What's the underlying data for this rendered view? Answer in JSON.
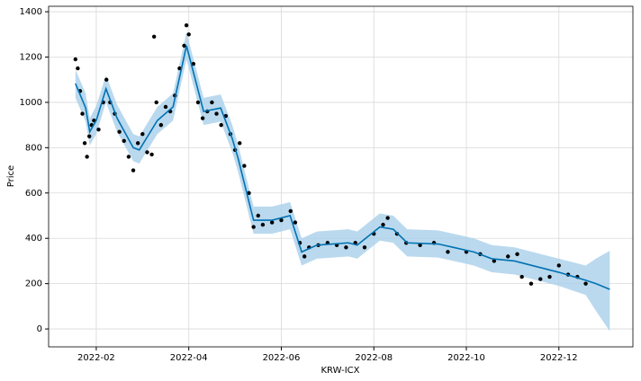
{
  "chart_data": {
    "type": "forecast",
    "xlabel": "KRW-ICX",
    "ylabel": "Price",
    "xlim": [
      -0.03,
      12.6
    ],
    "ylim": [
      -79,
      1424
    ],
    "xticks": [
      {
        "value": 1,
        "label": "2022-02"
      },
      {
        "value": 3,
        "label": "2022-04"
      },
      {
        "value": 5,
        "label": "2022-06"
      },
      {
        "value": 7,
        "label": "2022-08"
      },
      {
        "value": 9,
        "label": "2022-10"
      },
      {
        "value": 11,
        "label": "2022-12"
      }
    ],
    "yticks": [
      0,
      200,
      400,
      600,
      800,
      1000,
      1200,
      1400
    ],
    "grid": true,
    "line_color": "#0072b2",
    "band_color": "#a9cfea",
    "point_color": "#000000",
    "forecast": {
      "x": [
        0.55,
        0.77,
        0.86,
        1.0,
        1.21,
        1.45,
        1.8,
        1.93,
        2.32,
        2.66,
        2.95,
        3.32,
        3.69,
        3.94,
        4.07,
        4.4,
        4.8,
        5.19,
        5.44,
        5.77,
        6.45,
        6.64,
        7.13,
        7.42,
        7.72,
        8.39,
        9.16,
        9.55,
        10.04,
        11.0,
        11.58,
        11.8,
        12.1
      ],
      "yhat": [
        1083,
        976,
        870,
        920,
        1060,
        930,
        800,
        790,
        920,
        980,
        1250,
        960,
        975,
        840,
        750,
        480,
        480,
        500,
        340,
        370,
        380,
        370,
        450,
        440,
        380,
        375,
        340,
        310,
        300,
        250,
        215,
        200,
        175
      ],
      "yhat_lower": [
        1020,
        915,
        810,
        860,
        1000,
        870,
        740,
        730,
        860,
        920,
        1190,
        900,
        915,
        780,
        690,
        420,
        420,
        440,
        280,
        310,
        320,
        310,
        390,
        380,
        320,
        315,
        280,
        250,
        240,
        190,
        150,
        80,
        -10
      ],
      "yhat_upper": [
        1145,
        1040,
        930,
        985,
        1120,
        990,
        860,
        850,
        980,
        1040,
        1310,
        1020,
        1035,
        900,
        810,
        540,
        540,
        560,
        400,
        430,
        440,
        430,
        510,
        500,
        440,
        435,
        400,
        370,
        360,
        310,
        280,
        310,
        345
      ]
    },
    "observed": {
      "x": [
        0.55,
        0.6,
        0.65,
        0.7,
        0.75,
        0.8,
        0.85,
        0.9,
        0.95,
        1.05,
        1.15,
        1.22,
        1.3,
        1.4,
        1.5,
        1.6,
        1.7,
        1.8,
        1.9,
        2.0,
        2.1,
        2.2,
        2.25,
        2.3,
        2.4,
        2.5,
        2.6,
        2.7,
        2.8,
        2.9,
        2.95,
        3.0,
        3.1,
        3.2,
        3.3,
        3.4,
        3.5,
        3.6,
        3.7,
        3.8,
        3.9,
        4.0,
        4.1,
        4.2,
        4.3,
        4.4,
        4.5,
        4.6,
        4.8,
        5.0,
        5.2,
        5.3,
        5.4,
        5.5,
        5.6,
        5.8,
        6.0,
        6.2,
        6.4,
        6.6,
        6.8,
        7.0,
        7.2,
        7.3,
        7.5,
        7.7,
        8.0,
        8.3,
        8.6,
        9.0,
        9.3,
        9.6,
        9.9,
        10.1,
        10.2,
        10.4,
        10.6,
        10.8,
        11.0,
        11.2,
        11.4,
        11.58
      ],
      "y": [
        1190,
        1150,
        1050,
        950,
        820,
        760,
        850,
        900,
        920,
        880,
        1000,
        1100,
        1000,
        950,
        870,
        830,
        760,
        700,
        820,
        860,
        780,
        770,
        1290,
        1000,
        900,
        980,
        960,
        1030,
        1150,
        1250,
        1340,
        1300,
        1170,
        1000,
        930,
        960,
        1000,
        950,
        900,
        940,
        860,
        790,
        820,
        720,
        600,
        450,
        500,
        460,
        470,
        480,
        520,
        470,
        380,
        320,
        360,
        370,
        380,
        370,
        360,
        380,
        360,
        420,
        460,
        490,
        420,
        380,
        370,
        380,
        340,
        340,
        330,
        300,
        320,
        330,
        230,
        200,
        220,
        230,
        280,
        240,
        230,
        200
      ]
    }
  }
}
